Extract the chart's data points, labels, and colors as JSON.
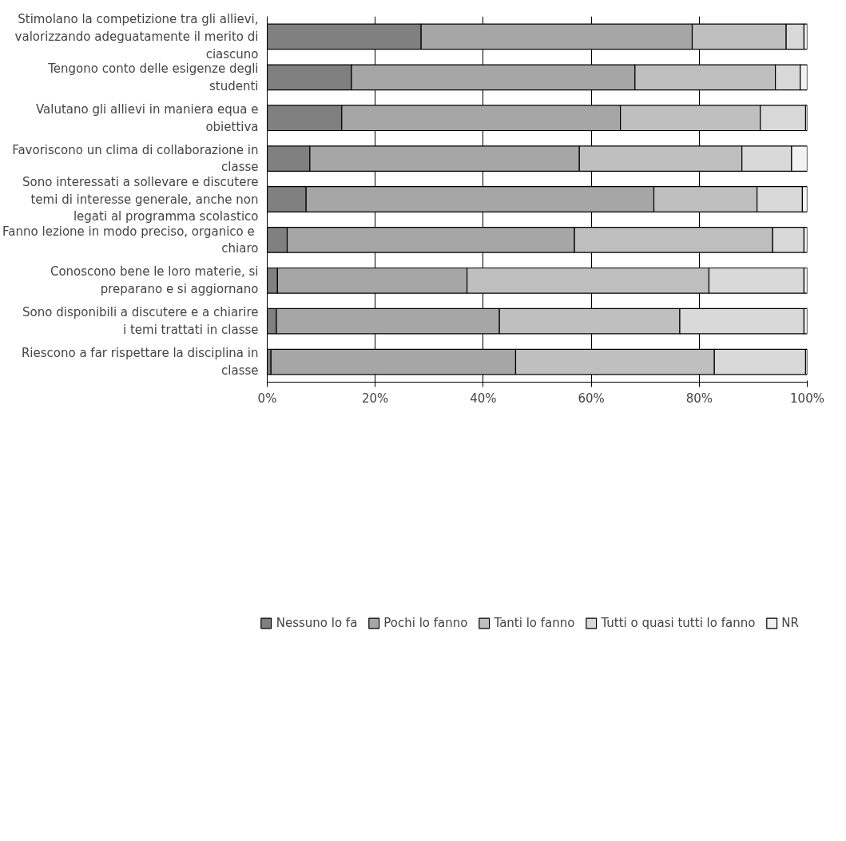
{
  "chart_data": {
    "type": "bar",
    "orientation": "horizontal",
    "stacked": true,
    "categories": [
      "Stimolano la competizione tra gli allievi, valorizzando adeguatamente il merito di ciascuno",
      "Tengono conto delle esigenze degli studenti",
      "Valutano gli allievi in maniera equa e obiettiva",
      "Favoriscono un clima di collaborazione in classe",
      "Sono interessati a sollevare e discutere temi di interesse generale, anche non legati al programma scolastico",
      "Fanno lezione in modo  preciso, organico e chiaro",
      "Conoscono bene le loro materie, si preparano e si aggiornano",
      "Sono disponibili a discutere e a chiarire i temi trattati in classe",
      "Riescono a far rispettare la disciplina in classe"
    ],
    "series": [
      {
        "name": "Nessuno lo fa",
        "color": "#808080",
        "values": [
          28.5,
          15.6,
          13.8,
          7.9,
          7.2,
          3.7,
          1.9,
          1.7,
          0.7
        ]
      },
      {
        "name": "Pochi lo fanno",
        "color": "#a6a6a6",
        "values": [
          50.2,
          52.5,
          51.6,
          49.9,
          64.4,
          53.2,
          35.1,
          41.3,
          45.3
        ]
      },
      {
        "name": "Tanti lo fanno",
        "color": "#bfbfbf",
        "values": [
          17.4,
          26.0,
          25.9,
          30.1,
          19.1,
          36.7,
          44.8,
          33.4,
          36.8
        ]
      },
      {
        "name": "Tutti o quasi tutti lo fanno",
        "color": "#d9d9d9",
        "values": [
          3.3,
          4.6,
          8.4,
          9.2,
          8.4,
          5.8,
          17.6,
          23.0,
          16.9
        ]
      },
      {
        "name": "NR",
        "color": "#f2f2f2",
        "values": [
          0.6,
          1.3,
          0.3,
          2.9,
          0.9,
          0.6,
          0.6,
          0.6,
          0.3
        ]
      }
    ],
    "xlim": [
      0,
      100
    ],
    "xticks": [
      {
        "value": 0,
        "label": "0%"
      },
      {
        "value": 20,
        "label": "20%"
      },
      {
        "value": 40,
        "label": "40%"
      },
      {
        "value": 60,
        "label": "60%"
      },
      {
        "value": 80,
        "label": "80%"
      },
      {
        "value": 100,
        "label": "100%"
      }
    ],
    "grid": "x",
    "legend": "bottom"
  }
}
